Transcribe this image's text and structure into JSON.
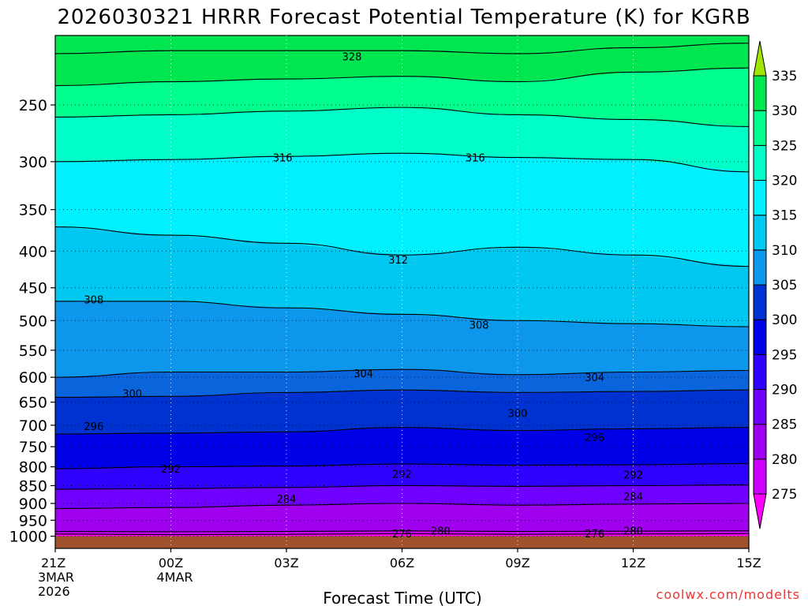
{
  "chart_data": {
    "type": "contourf",
    "title": "2026030321 HRRR Forecast Potential Temperature (K) for KGRB",
    "xlabel": "Forecast Time (UTC)",
    "ylabel": "",
    "credit": "coolwx.com/modelts",
    "x_hours": [
      0,
      3,
      6,
      9,
      12,
      15,
      18
    ],
    "x_ticks": [
      {
        "hour": 0,
        "lines": [
          "21Z",
          "3MAR",
          "2026"
        ]
      },
      {
        "hour": 3,
        "lines": [
          "00Z",
          "4MAR"
        ]
      },
      {
        "hour": 6,
        "lines": [
          "03Z"
        ]
      },
      {
        "hour": 9,
        "lines": [
          "06Z"
        ]
      },
      {
        "hour": 12,
        "lines": [
          "09Z"
        ]
      },
      {
        "hour": 15,
        "lines": [
          "12Z"
        ]
      },
      {
        "hour": 18,
        "lines": [
          "15Z"
        ]
      }
    ],
    "y_axis": {
      "scale": "log-pressure",
      "top_hpa": 200,
      "bottom_hpa": 1000,
      "ground_hpa": 1040
    },
    "y_ticks": [
      250,
      300,
      350,
      400,
      450,
      500,
      550,
      600,
      650,
      700,
      750,
      800,
      850,
      900,
      950,
      1000
    ],
    "colorbar": {
      "labels": [
        275,
        280,
        285,
        290,
        295,
        300,
        305,
        310,
        315,
        320,
        325,
        330,
        335
      ],
      "colors": [
        "#ff00ff",
        "#cc00ff",
        "#a000f0",
        "#7000ff",
        "#3000ff",
        "#0000e6",
        "#0032d2",
        "#0a64dc",
        "#0c96ec",
        "#00c8f0",
        "#00f0ff",
        "#00ffc8",
        "#00ff8c",
        "#00e650",
        "#a0e600"
      ]
    },
    "ground_color": "#a0522d",
    "surface": {
      "label": "Ground",
      "pressure_hpa": 1000
    },
    "isentropes": [
      {
        "theta": 276,
        "pressure": [
          993,
          995,
          994,
          992,
          994,
          993,
          992
        ]
      },
      {
        "theta": 280,
        "pressure": [
          985,
          986,
          985,
          983,
          985,
          984,
          983
        ]
      },
      {
        "theta": 284,
        "pressure": [
          915,
          912,
          905,
          900,
          905,
          902,
          900
        ]
      },
      {
        "theta": 288,
        "pressure": [
          860,
          858,
          855,
          850,
          852,
          850,
          848
        ]
      },
      {
        "theta": 292,
        "pressure": [
          805,
          800,
          798,
          793,
          796,
          795,
          792
        ]
      },
      {
        "theta": 296,
        "pressure": [
          720,
          718,
          715,
          705,
          712,
          708,
          705
        ]
      },
      {
        "theta": 300,
        "pressure": [
          640,
          638,
          630,
          625,
          630,
          628,
          625
        ]
      },
      {
        "theta": 304,
        "pressure": [
          600,
          590,
          590,
          585,
          595,
          590,
          587
        ]
      },
      {
        "theta": 308,
        "pressure": [
          470,
          470,
          480,
          490,
          500,
          505,
          510
        ]
      },
      {
        "theta": 312,
        "pressure": [
          370,
          380,
          390,
          405,
          395,
          405,
          420
        ]
      },
      {
        "theta": 316,
        "pressure": [
          300,
          298,
          295,
          292,
          296,
          298,
          310
        ]
      },
      {
        "theta": 320,
        "pressure": [
          260,
          258,
          255,
          252,
          258,
          262,
          268
        ]
      },
      {
        "theta": 324,
        "pressure": [
          235,
          232,
          230,
          228,
          232,
          225,
          222
        ]
      },
      {
        "theta": 328,
        "pressure": [
          212,
          210,
          210,
          210,
          212,
          208,
          205
        ]
      }
    ],
    "contour_labels": [
      {
        "text": "328",
        "hour": 7.7,
        "pressure": 214
      },
      {
        "text": "316",
        "hour": 5.9,
        "pressure": 296
      },
      {
        "text": "316",
        "hour": 10.9,
        "pressure": 296
      },
      {
        "text": "312",
        "hour": 8.9,
        "pressure": 411
      },
      {
        "text": "308",
        "hour": 1.0,
        "pressure": 467
      },
      {
        "text": "308",
        "hour": 11.0,
        "pressure": 507
      },
      {
        "text": "304",
        "hour": 8.0,
        "pressure": 592
      },
      {
        "text": "304",
        "hour": 14.0,
        "pressure": 600
      },
      {
        "text": "300",
        "hour": 2.0,
        "pressure": 632
      },
      {
        "text": "300",
        "hour": 12.0,
        "pressure": 673
      },
      {
        "text": "296",
        "hour": 1.0,
        "pressure": 702
      },
      {
        "text": "296",
        "hour": 14.0,
        "pressure": 727
      },
      {
        "text": "292",
        "hour": 3.0,
        "pressure": 805
      },
      {
        "text": "292",
        "hour": 9.0,
        "pressure": 818
      },
      {
        "text": "292",
        "hour": 15.0,
        "pressure": 820
      },
      {
        "text": "284",
        "hour": 6.0,
        "pressure": 886
      },
      {
        "text": "284",
        "hour": 15.0,
        "pressure": 880
      },
      {
        "text": "276",
        "hour": 9.0,
        "pressure": 991
      },
      {
        "text": "280",
        "hour": 10.0,
        "pressure": 982
      },
      {
        "text": "276",
        "hour": 14.0,
        "pressure": 991
      },
      {
        "text": "280",
        "hour": 15.0,
        "pressure": 982
      }
    ]
  }
}
